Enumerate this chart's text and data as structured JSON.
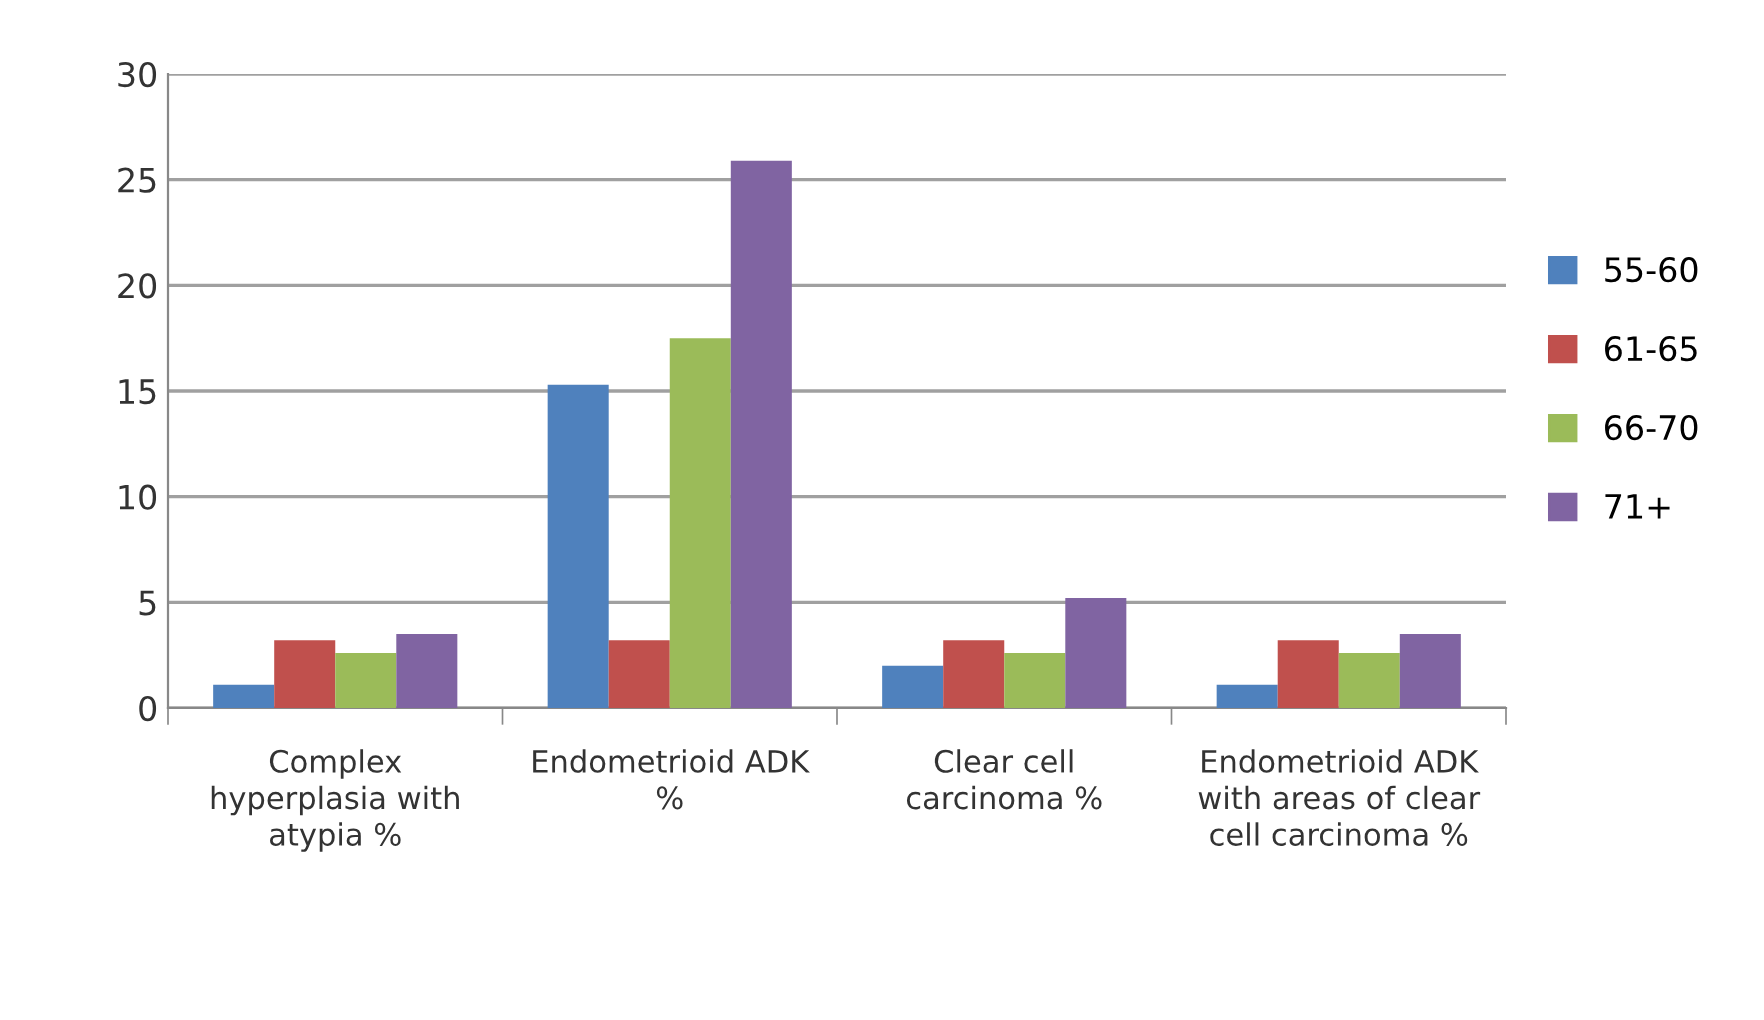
{
  "chart_data": {
    "type": "bar",
    "categories": [
      "Complex hyperplasia with atypia %",
      "Endometrioid ADK %",
      "Clear cell carcinoma %",
      "Endometrioid ADK with areas of clear cell carcinoma %"
    ],
    "series": [
      {
        "name": "55-60",
        "color": "#4f81bd",
        "values": [
          1.1,
          15.3,
          2.0,
          1.1
        ]
      },
      {
        "name": "61-65",
        "color": "#c0504d",
        "values": [
          3.2,
          3.2,
          3.2,
          3.2
        ]
      },
      {
        "name": "66-70",
        "color": "#9bbb59",
        "values": [
          2.6,
          17.5,
          2.6,
          2.6
        ]
      },
      {
        "name": "71+",
        "color": "#8064a2",
        "values": [
          3.5,
          25.9,
          5.2,
          3.5
        ]
      }
    ],
    "ylim": [
      0,
      30
    ],
    "yticks": [
      0,
      5,
      10,
      15,
      20,
      25,
      30
    ],
    "grid": "y",
    "legend": "right"
  }
}
